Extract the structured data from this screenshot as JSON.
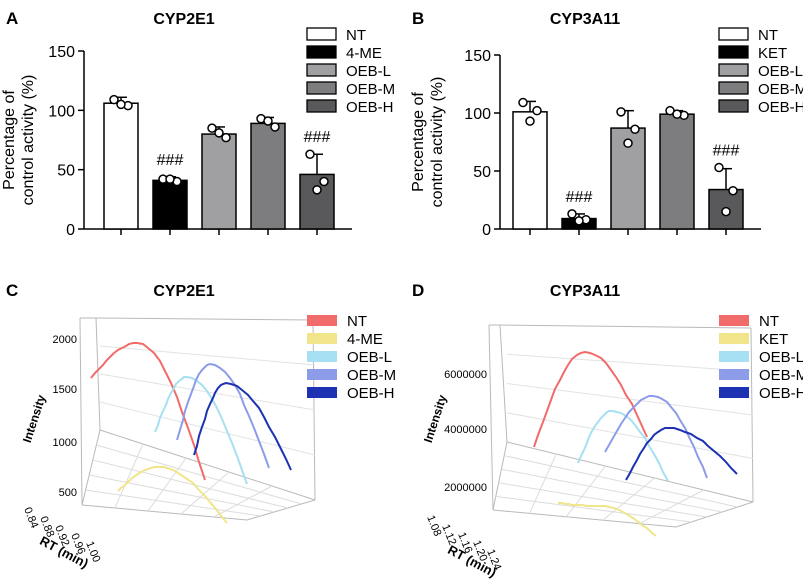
{
  "chart_data": [
    {
      "panel": "A",
      "type": "bar",
      "title": "CYP2E1",
      "ylabel": "Percentage of control activity (%)",
      "ylabel_lines": [
        "Percentage of",
        "control activity (%)"
      ],
      "ylim": [
        0,
        150
      ],
      "yticks": [
        0,
        50,
        100,
        150
      ],
      "categories": [
        "NT",
        "4-ME",
        "OEB-L",
        "OEB-M",
        "OEB-H"
      ],
      "values": [
        106,
        41,
        80,
        89,
        46
      ],
      "errors": [
        5,
        3,
        6,
        5,
        17
      ],
      "points": [
        [
          109,
          104,
          105
        ],
        [
          42,
          40,
          42
        ],
        [
          85,
          77,
          81
        ],
        [
          93,
          86,
          91
        ],
        [
          63,
          40,
          33
        ]
      ],
      "fills": [
        "#ffffff",
        "#000000",
        "#a0a0a2",
        "#7d7d7f",
        "#59595b"
      ],
      "annotations": [
        "",
        "###",
        "",
        "",
        "###"
      ],
      "legend": [
        "NT",
        "4-ME",
        "OEB-L",
        "OEB-M",
        "OEB-H"
      ]
    },
    {
      "panel": "B",
      "type": "bar",
      "title": "CYP3A11",
      "ylabel": "Percentage of control activity (%)",
      "ylabel_lines": [
        "Percentage of",
        "control activity (%)"
      ],
      "ylim": [
        0,
        150
      ],
      "yticks": [
        0,
        50,
        100,
        150
      ],
      "categories": [
        "NT",
        "KET",
        "OEB-L",
        "OEB-M",
        "OEB-H"
      ],
      "values": [
        101,
        9,
        87,
        99,
        34
      ],
      "errors": [
        9,
        4,
        15,
        3,
        18
      ],
      "points": [
        [
          109,
          102,
          93
        ],
        [
          13,
          8,
          7
        ],
        [
          101,
          86,
          74
        ],
        [
          102,
          98,
          99
        ],
        [
          53,
          33,
          15
        ]
      ],
      "fills": [
        "#ffffff",
        "#000000",
        "#a0a0a2",
        "#7d7d7f",
        "#59595b"
      ],
      "annotations": [
        "",
        "###",
        "",
        "",
        "###"
      ],
      "legend": [
        "NT",
        "KET",
        "OEB-L",
        "OEB-M",
        "OEB-H"
      ]
    },
    {
      "panel": "C",
      "type": "line",
      "title": "CYP2E1",
      "xlabel": "RT (min)",
      "ylabel": "Intensity",
      "xticks": [
        "0.84",
        "0.88",
        "0.92",
        "0.96",
        "1.00"
      ],
      "yticks": [
        "500",
        "1000",
        "1500",
        "2000"
      ],
      "legend": [
        "NT",
        "4-ME",
        "OEB-L",
        "OEB-M",
        "OEB-H"
      ],
      "colors": [
        "#f26b6b",
        "#f0e58a",
        "#a6e0f2",
        "#8d9ce8",
        "#1c32b3"
      ]
    },
    {
      "panel": "D",
      "type": "line",
      "title": "CYP3A11",
      "xlabel": "RT (min)",
      "ylabel": "Intensity",
      "xticks": [
        "1.08",
        "1.12",
        "1.16",
        "1.20",
        "1.24"
      ],
      "yticks": [
        "2000000",
        "4000000",
        "6000000"
      ],
      "legend": [
        "NT",
        "KET",
        "OEB-L",
        "OEB-M",
        "OEB-H"
      ],
      "colors": [
        "#f26b6b",
        "#f0e58a",
        "#a6e0f2",
        "#8d9ce8",
        "#1c32b3"
      ]
    }
  ]
}
